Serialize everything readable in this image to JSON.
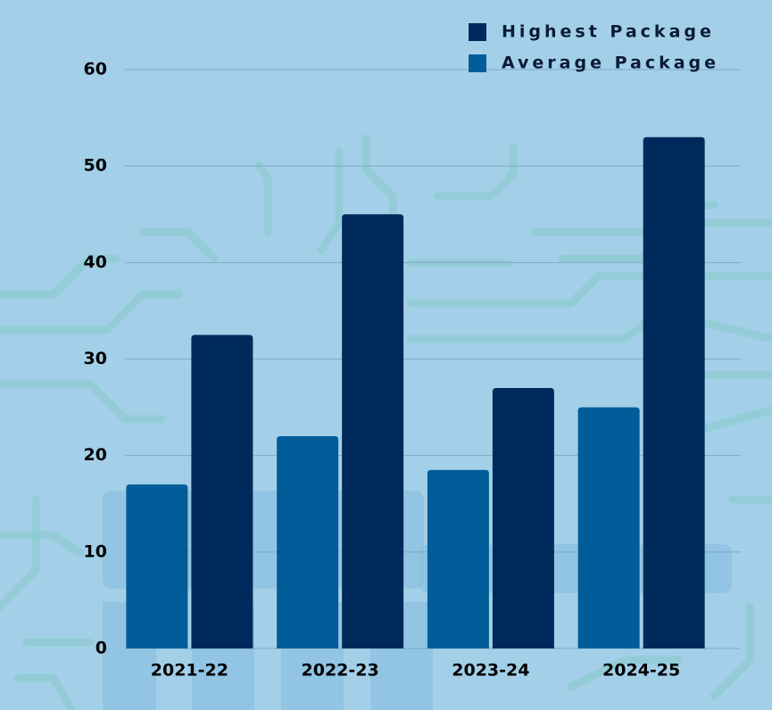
{
  "chart_data": {
    "type": "bar",
    "categories": [
      "2021-22",
      "2022-23",
      "2023-24",
      "2024-25"
    ],
    "series": [
      {
        "name": "Average Package",
        "color": "#005d99",
        "values": [
          17,
          22,
          18.5,
          25
        ]
      },
      {
        "name": "Highest Package",
        "color": "#012a5c",
        "values": [
          32.5,
          45,
          27,
          53
        ]
      }
    ],
    "legend_order": [
      1,
      0
    ],
    "ylim": [
      0,
      60
    ],
    "yticks": [
      0,
      10,
      20,
      30,
      40,
      50,
      60
    ],
    "grid": true
  }
}
